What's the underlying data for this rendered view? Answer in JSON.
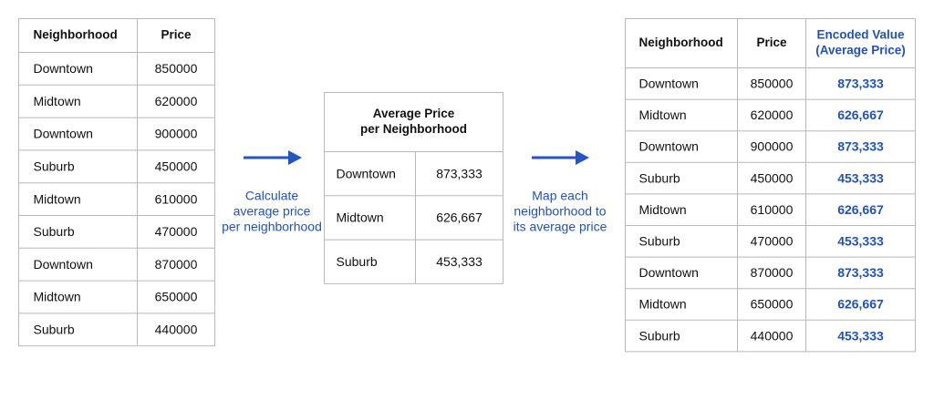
{
  "left_table": {
    "header": [
      "Neighborhood",
      "Price"
    ],
    "rows": [
      [
        "Downtown",
        850000
      ],
      [
        "Midtown",
        620000
      ],
      [
        "Downtown",
        900000
      ],
      [
        "Suburb",
        450000
      ],
      [
        "Midtown",
        610000
      ],
      [
        "Suburb",
        470000
      ],
      [
        "Downtown",
        870000
      ],
      [
        "Midtown",
        650000
      ],
      [
        "Suburb",
        440000
      ]
    ]
  },
  "step_1": {
    "caption": [
      "Calculate",
      "average price",
      "per neighborhood"
    ]
  },
  "middle_table": {
    "title": [
      "Average Price",
      "per Neighborhood"
    ],
    "rows": [
      [
        "Downtown",
        "873,333"
      ],
      [
        "Midtown",
        "626,667"
      ],
      [
        "Suburb",
        "453,333"
      ]
    ]
  },
  "step_2": {
    "caption": [
      "Map each",
      "neighborhood to",
      "its average price"
    ]
  },
  "right_table": {
    "header": [
      [
        "Neighborhood"
      ],
      [
        "Price"
      ],
      [
        "Encoded Value",
        "(Average Price)"
      ]
    ],
    "rows": [
      [
        "Downtown",
        850000,
        "873,333"
      ],
      [
        "Midtown",
        620000,
        "626,667"
      ],
      [
        "Downtown",
        900000,
        "873,333"
      ],
      [
        "Suburb",
        450000,
        "453,333"
      ],
      [
        "Midtown",
        610000,
        "626,667"
      ],
      [
        "Suburb",
        470000,
        "453,333"
      ],
      [
        "Downtown",
        870000,
        "873,333"
      ],
      [
        "Midtown",
        650000,
        "626,667"
      ],
      [
        "Suburb",
        440000,
        "453,333"
      ]
    ]
  }
}
